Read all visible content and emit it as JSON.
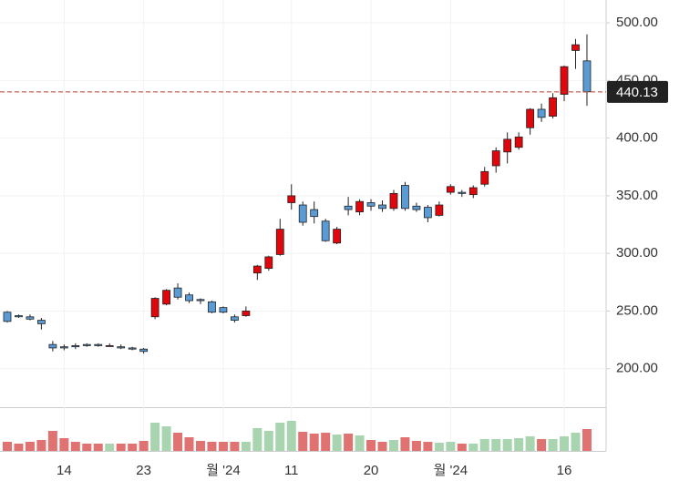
{
  "chart_data": {
    "type": "candlestick",
    "categories": [
      null,
      null,
      null,
      null,
      null,
      "14",
      null,
      null,
      null,
      null,
      null,
      null,
      "23",
      null,
      null,
      null,
      null,
      null,
      null,
      "월 '24",
      null,
      null,
      null,
      null,
      null,
      "11",
      null,
      null,
      null,
      null,
      null,
      null,
      "20",
      null,
      null,
      null,
      null,
      null,
      null,
      "월 '24",
      null,
      null,
      null,
      null,
      null,
      null,
      null,
      null,
      null,
      "16",
      null,
      null
    ],
    "open": [
      249,
      246,
      245,
      242,
      221,
      219,
      220,
      221,
      221,
      220,
      219,
      218,
      217,
      245,
      256,
      270,
      264,
      260,
      258,
      253,
      245,
      246,
      283,
      287,
      299,
      344,
      342,
      338,
      328,
      309,
      341,
      336,
      344,
      342,
      339,
      359,
      341,
      340,
      333,
      353,
      353,
      351,
      360,
      376,
      388,
      392,
      409,
      425,
      419,
      438,
      476,
      467
    ],
    "high": [
      250,
      247,
      247,
      244,
      224,
      221,
      222,
      222,
      222,
      222,
      221,
      219,
      218,
      262,
      269,
      274,
      266,
      261,
      259,
      254,
      247,
      254,
      290,
      298,
      330,
      360,
      345,
      345,
      330,
      323,
      349,
      347,
      347,
      346,
      355,
      362,
      344,
      342,
      345,
      360,
      355,
      359,
      375,
      392,
      405,
      405,
      426,
      430,
      439,
      463,
      486,
      490
    ],
    "low": [
      240,
      244,
      242,
      234,
      215,
      216,
      217,
      219,
      219,
      219,
      217,
      216,
      213,
      243,
      255,
      260,
      257,
      256,
      248,
      248,
      240,
      245,
      277,
      285,
      298,
      338,
      324,
      326,
      310,
      308,
      333,
      333,
      337,
      336,
      337,
      337,
      336,
      327,
      332,
      351,
      349,
      348,
      358,
      370,
      378,
      390,
      403,
      414,
      417,
      432,
      460,
      428
    ],
    "close": [
      241,
      245,
      243,
      239,
      218,
      218,
      219,
      220,
      220,
      220,
      218,
      217,
      215,
      261,
      268,
      262,
      259,
      259,
      249,
      249,
      242,
      250,
      289,
      297,
      321,
      350,
      327,
      332,
      311,
      321,
      338,
      345,
      341,
      339,
      352,
      339,
      338,
      331,
      342,
      358,
      352,
      357,
      371,
      389,
      399,
      401,
      425,
      418,
      435,
      462,
      481,
      440.13
    ],
    "volume": [
      10,
      8,
      10,
      12,
      22,
      14,
      10,
      8,
      8,
      8,
      8,
      8,
      11,
      31,
      27,
      20,
      15,
      11,
      10,
      10,
      10,
      10,
      25,
      22,
      31,
      33,
      21,
      19,
      20,
      18,
      19,
      17,
      12,
      10,
      12,
      15,
      11,
      10,
      9,
      10,
      8,
      8,
      13,
      13,
      13,
      14,
      16,
      13,
      13,
      16,
      20,
      24
    ],
    "volume_ylim": [
      0,
      47
    ],
    "up_color": "#e0060b",
    "down_color": "#5b9bd5",
    "volume_up_color": "#a8d5b0",
    "volume_down_color": "#e07272",
    "ylim": [
      166.6,
      519.8
    ],
    "yticks": [
      {
        "value": 200,
        "label": "200.00"
      },
      {
        "value": 250,
        "label": "250.00"
      },
      {
        "value": 300,
        "label": "300.00"
      },
      {
        "value": 350,
        "label": "350.00"
      },
      {
        "value": 400,
        "label": "400.00"
      },
      {
        "value": 450,
        "label": "450.00"
      },
      {
        "value": 500,
        "label": "500.00"
      }
    ],
    "current_price": {
      "value": 440.13,
      "label": "440.13"
    },
    "grid": true
  }
}
